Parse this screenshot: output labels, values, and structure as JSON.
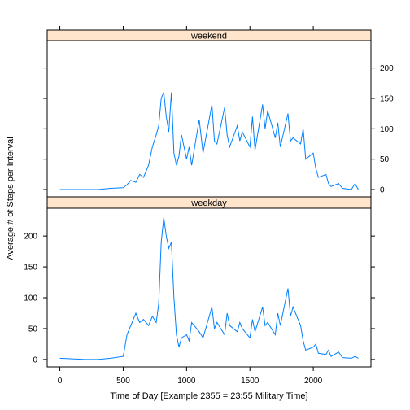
{
  "chart_data": {
    "type": "line",
    "xlabel": "Time of Day [Example 2355 = 23:55 Military Time]",
    "ylabel": "Average # of Steps per Interval",
    "xlim": [
      -100,
      2455
    ],
    "ylim": [
      -12,
      245
    ],
    "xticks": [
      0,
      500,
      1000,
      1500,
      2000
    ],
    "yticks": [
      0,
      50,
      100,
      150,
      200
    ],
    "colors": {
      "line": "#0080ff",
      "strip": "#ffe5cc"
    },
    "panels": [
      {
        "name": "weekend",
        "x": [
          0,
          100,
          200,
          300,
          400,
          500,
          530,
          560,
          600,
          630,
          660,
          700,
          730,
          760,
          780,
          800,
          820,
          840,
          860,
          880,
          900,
          920,
          940,
          960,
          1000,
          1020,
          1040,
          1100,
          1130,
          1200,
          1220,
          1240,
          1300,
          1320,
          1340,
          1400,
          1420,
          1440,
          1500,
          1520,
          1540,
          1600,
          1620,
          1640,
          1700,
          1720,
          1740,
          1800,
          1820,
          1840,
          1900,
          1920,
          1940,
          2000,
          2020,
          2040,
          2100,
          2120,
          2140,
          2200,
          2230,
          2300,
          2330,
          2355
        ],
        "values": [
          0,
          0,
          0,
          0,
          2,
          3,
          8,
          15,
          12,
          25,
          20,
          40,
          70,
          90,
          105,
          150,
          160,
          120,
          95,
          160,
          60,
          40,
          55,
          90,
          50,
          70,
          40,
          115,
          60,
          140,
          80,
          75,
          135,
          90,
          70,
          105,
          80,
          95,
          70,
          120,
          65,
          140,
          100,
          130,
          85,
          110,
          70,
          125,
          80,
          85,
          75,
          100,
          50,
          60,
          35,
          20,
          25,
          10,
          5,
          10,
          2,
          0,
          10,
          0
        ]
      },
      {
        "name": "weekday",
        "x": [
          0,
          100,
          200,
          300,
          400,
          500,
          530,
          560,
          600,
          630,
          660,
          700,
          730,
          760,
          780,
          800,
          820,
          840,
          860,
          880,
          900,
          920,
          940,
          960,
          1000,
          1020,
          1040,
          1100,
          1130,
          1200,
          1220,
          1240,
          1300,
          1320,
          1340,
          1400,
          1420,
          1440,
          1500,
          1520,
          1540,
          1600,
          1620,
          1640,
          1700,
          1720,
          1740,
          1800,
          1820,
          1840,
          1900,
          1920,
          1940,
          2000,
          2020,
          2040,
          2100,
          2120,
          2140,
          2200,
          2230,
          2300,
          2330,
          2355
        ],
        "values": [
          2,
          1,
          0,
          0,
          2,
          5,
          40,
          55,
          75,
          60,
          65,
          55,
          70,
          60,
          90,
          190,
          230,
          200,
          180,
          190,
          100,
          40,
          20,
          35,
          40,
          30,
          60,
          45,
          35,
          85,
          50,
          60,
          40,
          75,
          55,
          45,
          60,
          50,
          35,
          65,
          45,
          85,
          55,
          60,
          40,
          75,
          55,
          115,
          70,
          85,
          55,
          30,
          15,
          20,
          25,
          10,
          8,
          15,
          5,
          12,
          3,
          2,
          5,
          2
        ]
      }
    ]
  }
}
